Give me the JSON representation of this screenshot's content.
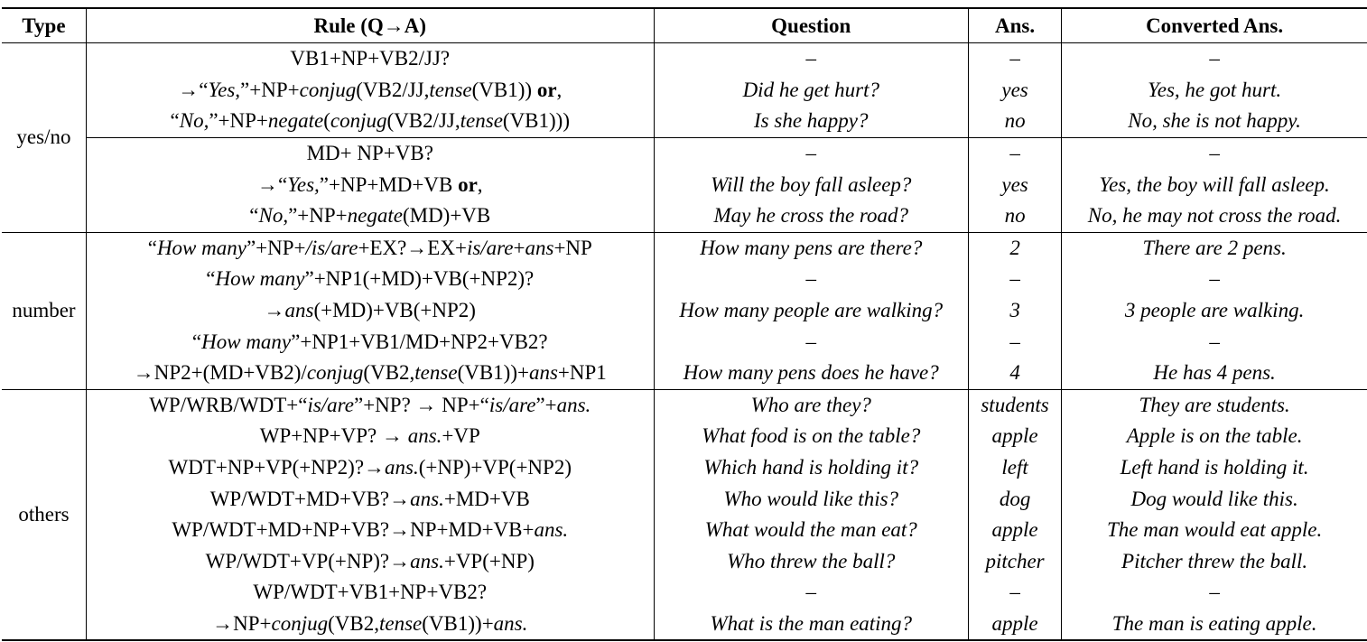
{
  "table": {
    "headers": {
      "type": "Type",
      "rule": "Rule (Q→A)",
      "question": "Question",
      "ans": "Ans.",
      "converted": "Converted Ans."
    },
    "groups": [
      {
        "type": "yes/no",
        "rows": [
          {
            "rule": [
              [
                "VB1+NP+VB2/JJ?",
                ""
              ]
            ],
            "question": "–",
            "ans": "–",
            "converted": "–",
            "subsep": false
          },
          {
            "rule": [
              [
                "→“",
                ""
              ],
              [
                "Yes,",
                "i"
              ],
              [
                "”+NP+",
                ""
              ],
              [
                "conjug",
                "i"
              ],
              [
                "(VB2/JJ,",
                ""
              ],
              [
                "tense",
                "i"
              ],
              [
                "(VB1)) ",
                ""
              ],
              [
                "or",
                "b"
              ],
              [
                ",",
                ""
              ]
            ],
            "question": "Did he get hurt?",
            "ans": "yes",
            "converted": "Yes, he got hurt.",
            "subsep": false
          },
          {
            "rule": [
              [
                "“",
                ""
              ],
              [
                "No,",
                "i"
              ],
              [
                "”+NP+",
                ""
              ],
              [
                "negate",
                "i"
              ],
              [
                "(",
                ""
              ],
              [
                "conjug",
                "i"
              ],
              [
                "(VB2/JJ,",
                ""
              ],
              [
                "tense",
                "i"
              ],
              [
                "(VB1)))",
                ""
              ]
            ],
            "question": "Is she happy?",
            "ans": "no",
            "converted": "No, she is not happy.",
            "subsep": false
          },
          {
            "rule": [
              [
                "MD+ NP+VB?",
                ""
              ]
            ],
            "question": "–",
            "ans": "–",
            "converted": "–",
            "subsep": true
          },
          {
            "rule": [
              [
                "→“",
                ""
              ],
              [
                "Yes,",
                "i"
              ],
              [
                "”+NP+MD+VB ",
                ""
              ],
              [
                "or",
                "b"
              ],
              [
                ",",
                ""
              ]
            ],
            "question": "Will the boy fall asleep?",
            "ans": "yes",
            "converted": "Yes, the boy will fall asleep.",
            "subsep": false
          },
          {
            "rule": [
              [
                "“",
                ""
              ],
              [
                "No,",
                "i"
              ],
              [
                "”+NP+",
                ""
              ],
              [
                "negate",
                "i"
              ],
              [
                "(MD)+VB",
                ""
              ]
            ],
            "question": "May he cross the road?",
            "ans": "no",
            "converted": "No, he may not cross the road.",
            "subsep": false
          }
        ]
      },
      {
        "type": "number",
        "rows": [
          {
            "rule": [
              [
                "“",
                ""
              ],
              [
                "How many",
                "i"
              ],
              [
                "”+NP+",
                ""
              ],
              [
                "/is/are",
                "i"
              ],
              [
                "+EX?→EX+",
                ""
              ],
              [
                "is/are",
                "i"
              ],
              [
                "+",
                ""
              ],
              [
                "ans",
                "i"
              ],
              [
                "+NP",
                ""
              ]
            ],
            "question": "How many pens are there?",
            "ans": "2",
            "converted": "There are 2 pens.",
            "subsep": false
          },
          {
            "rule": [
              [
                "“",
                ""
              ],
              [
                "How many",
                "i"
              ],
              [
                "”+NP1(+MD)+VB(+NP2)?",
                ""
              ]
            ],
            "question": "–",
            "ans": "–",
            "converted": "–",
            "subsep": false
          },
          {
            "rule": [
              [
                "→",
                ""
              ],
              [
                "ans",
                "i"
              ],
              [
                "(+MD)+VB(+NP2)",
                ""
              ]
            ],
            "question": "How many people are walking?",
            "ans": "3",
            "converted": "3 people are walking.",
            "subsep": false
          },
          {
            "rule": [
              [
                "“",
                ""
              ],
              [
                "How many",
                "i"
              ],
              [
                "”+NP1+VB1/MD+NP2+VB2?",
                ""
              ]
            ],
            "question": "–",
            "ans": "–",
            "converted": "–",
            "subsep": false
          },
          {
            "rule": [
              [
                "→NP2+(MD+VB2)/",
                ""
              ],
              [
                "conjug",
                "i"
              ],
              [
                "(VB2,",
                ""
              ],
              [
                "tense",
                "i"
              ],
              [
                "(VB1))+",
                ""
              ],
              [
                "ans",
                "i"
              ],
              [
                "+NP1",
                ""
              ]
            ],
            "question": "How many pens does he have?",
            "ans": "4",
            "converted": "He has 4 pens.",
            "subsep": false
          }
        ]
      },
      {
        "type": "others",
        "rows": [
          {
            "rule": [
              [
                "WP/WRB/WDT+“",
                ""
              ],
              [
                "is/are",
                "i"
              ],
              [
                "”+NP? → NP+“",
                ""
              ],
              [
                "is/are",
                "i"
              ],
              [
                "”+",
                ""
              ],
              [
                "ans.",
                "i"
              ]
            ],
            "question": "Who are they?",
            "ans": "students",
            "converted": "They are students.",
            "subsep": false
          },
          {
            "rule": [
              [
                "WP+NP+VP? → ",
                ""
              ],
              [
                "ans.",
                "i"
              ],
              [
                "+VP",
                ""
              ]
            ],
            "question": "What food is on the table?",
            "ans": "apple",
            "converted": "Apple is on the table.",
            "subsep": false
          },
          {
            "rule": [
              [
                "WDT+NP+VP(+NP2)?→",
                ""
              ],
              [
                "ans.",
                "i"
              ],
              [
                "(+NP)+VP(+NP2)",
                ""
              ]
            ],
            "question": "Which hand is holding it?",
            "ans": "left",
            "converted": "Left hand is holding it.",
            "subsep": false
          },
          {
            "rule": [
              [
                "WP/WDT+MD+VB?→",
                ""
              ],
              [
                "ans.",
                "i"
              ],
              [
                "+MD+VB",
                ""
              ]
            ],
            "question": "Who would like this?",
            "ans": "dog",
            "converted": "Dog would like this.",
            "subsep": false
          },
          {
            "rule": [
              [
                "WP/WDT+MD+NP+VB?→NP+MD+VB+",
                ""
              ],
              [
                "ans.",
                "i"
              ]
            ],
            "question": "What would the man eat?",
            "ans": "apple",
            "converted": "The man would eat apple.",
            "subsep": false
          },
          {
            "rule": [
              [
                "WP/WDT+VP(+NP)?→",
                ""
              ],
              [
                "ans.",
                "i"
              ],
              [
                "+VP(+NP)",
                ""
              ]
            ],
            "question": "Who threw the ball?",
            "ans": "pitcher",
            "converted": "Pitcher threw the ball.",
            "subsep": false
          },
          {
            "rule": [
              [
                "WP/WDT+VB1+NP+VB2?",
                ""
              ]
            ],
            "question": "–",
            "ans": "–",
            "converted": "–",
            "subsep": false
          },
          {
            "rule": [
              [
                "→NP+",
                ""
              ],
              [
                "conjug",
                "i"
              ],
              [
                "(VB2,",
                ""
              ],
              [
                "tense",
                "i"
              ],
              [
                "(VB1))+",
                ""
              ],
              [
                "ans.",
                "i"
              ]
            ],
            "question": "What is the man eating?",
            "ans": "apple",
            "converted": "The man is eating apple.",
            "subsep": false
          }
        ]
      }
    ]
  }
}
